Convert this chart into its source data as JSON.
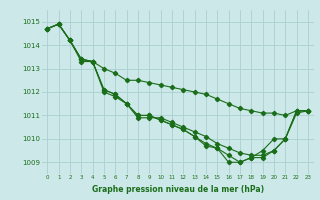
{
  "xlabel": "Graphe pression niveau de la mer (hPa)",
  "bg_color": "#cce8e8",
  "grid_color": "#aad0d0",
  "line_color": "#1a6e1a",
  "ylim": [
    1008.5,
    1015.5
  ],
  "xlim": [
    -0.5,
    23.5
  ],
  "yticks": [
    1009,
    1010,
    1011,
    1012,
    1013,
    1014,
    1015
  ],
  "xticks": [
    0,
    1,
    2,
    3,
    4,
    5,
    6,
    7,
    8,
    9,
    10,
    11,
    12,
    13,
    14,
    15,
    16,
    17,
    18,
    19,
    20,
    21,
    22,
    23
  ],
  "series": [
    [
      1014.7,
      1014.9,
      1014.2,
      1013.3,
      1013.3,
      1012.0,
      1011.8,
      1011.5,
      1010.9,
      1010.9,
      1010.9,
      1010.7,
      1010.5,
      1010.3,
      1010.1,
      1009.8,
      1009.6,
      1009.4,
      1009.3,
      1009.3,
      1009.5,
      1010.0,
      1011.1,
      1011.2
    ],
    [
      1014.7,
      1014.9,
      1014.2,
      1013.4,
      1013.3,
      1012.1,
      1011.9,
      1011.5,
      1011.0,
      1011.0,
      1010.8,
      1010.6,
      1010.4,
      1010.1,
      1009.7,
      1009.6,
      1009.0,
      1009.0,
      1009.2,
      1009.2,
      1009.5,
      1010.0,
      1011.2,
      1011.2
    ],
    [
      1014.7,
      1014.9,
      1014.2,
      1013.4,
      1013.3,
      1012.1,
      1011.9,
      1011.5,
      1011.0,
      1011.0,
      1010.8,
      1010.6,
      1010.4,
      1010.1,
      1009.8,
      1009.6,
      1009.3,
      1009.0,
      1009.2,
      1009.5,
      1010.0,
      1010.0,
      1011.2,
      1011.2
    ],
    [
      1014.7,
      1014.9,
      1014.2,
      1013.4,
      1013.3,
      1013.0,
      1012.8,
      1012.5,
      1012.5,
      1012.4,
      1012.3,
      1012.2,
      1012.1,
      1012.0,
      1011.9,
      1011.7,
      1011.5,
      1011.3,
      1011.2,
      1011.1,
      1011.1,
      1011.0,
      1011.2,
      1011.2
    ]
  ]
}
